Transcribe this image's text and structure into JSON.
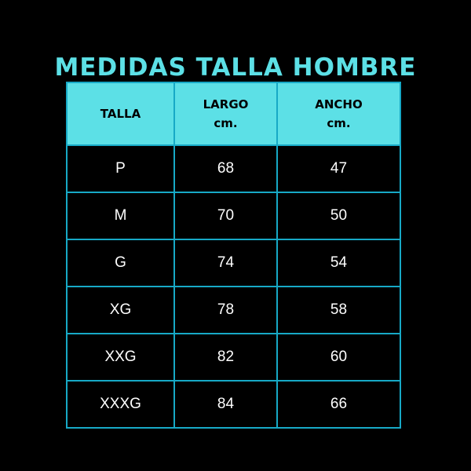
{
  "title": "MEDIDAS TALLA HOMBRE",
  "header": {
    "talla": "TALLA",
    "largo": "LARGO",
    "largo_unit": "cm.",
    "ancho": "ANCHO",
    "ancho_unit": "cm."
  },
  "rows": [
    {
      "talla": "P",
      "largo": "68",
      "ancho": "47"
    },
    {
      "talla": "M",
      "largo": "70",
      "ancho": "50"
    },
    {
      "talla": "G",
      "largo": "74",
      "ancho": "54"
    },
    {
      "talla": "XG",
      "largo": "78",
      "ancho": "58"
    },
    {
      "talla": "XXG",
      "largo": "82",
      "ancho": "60"
    },
    {
      "talla": "XXXG",
      "largo": "84",
      "ancho": "66"
    }
  ],
  "colors": {
    "accent": "#5ce0e6",
    "border": "#17a9c6",
    "background": "#000000"
  }
}
